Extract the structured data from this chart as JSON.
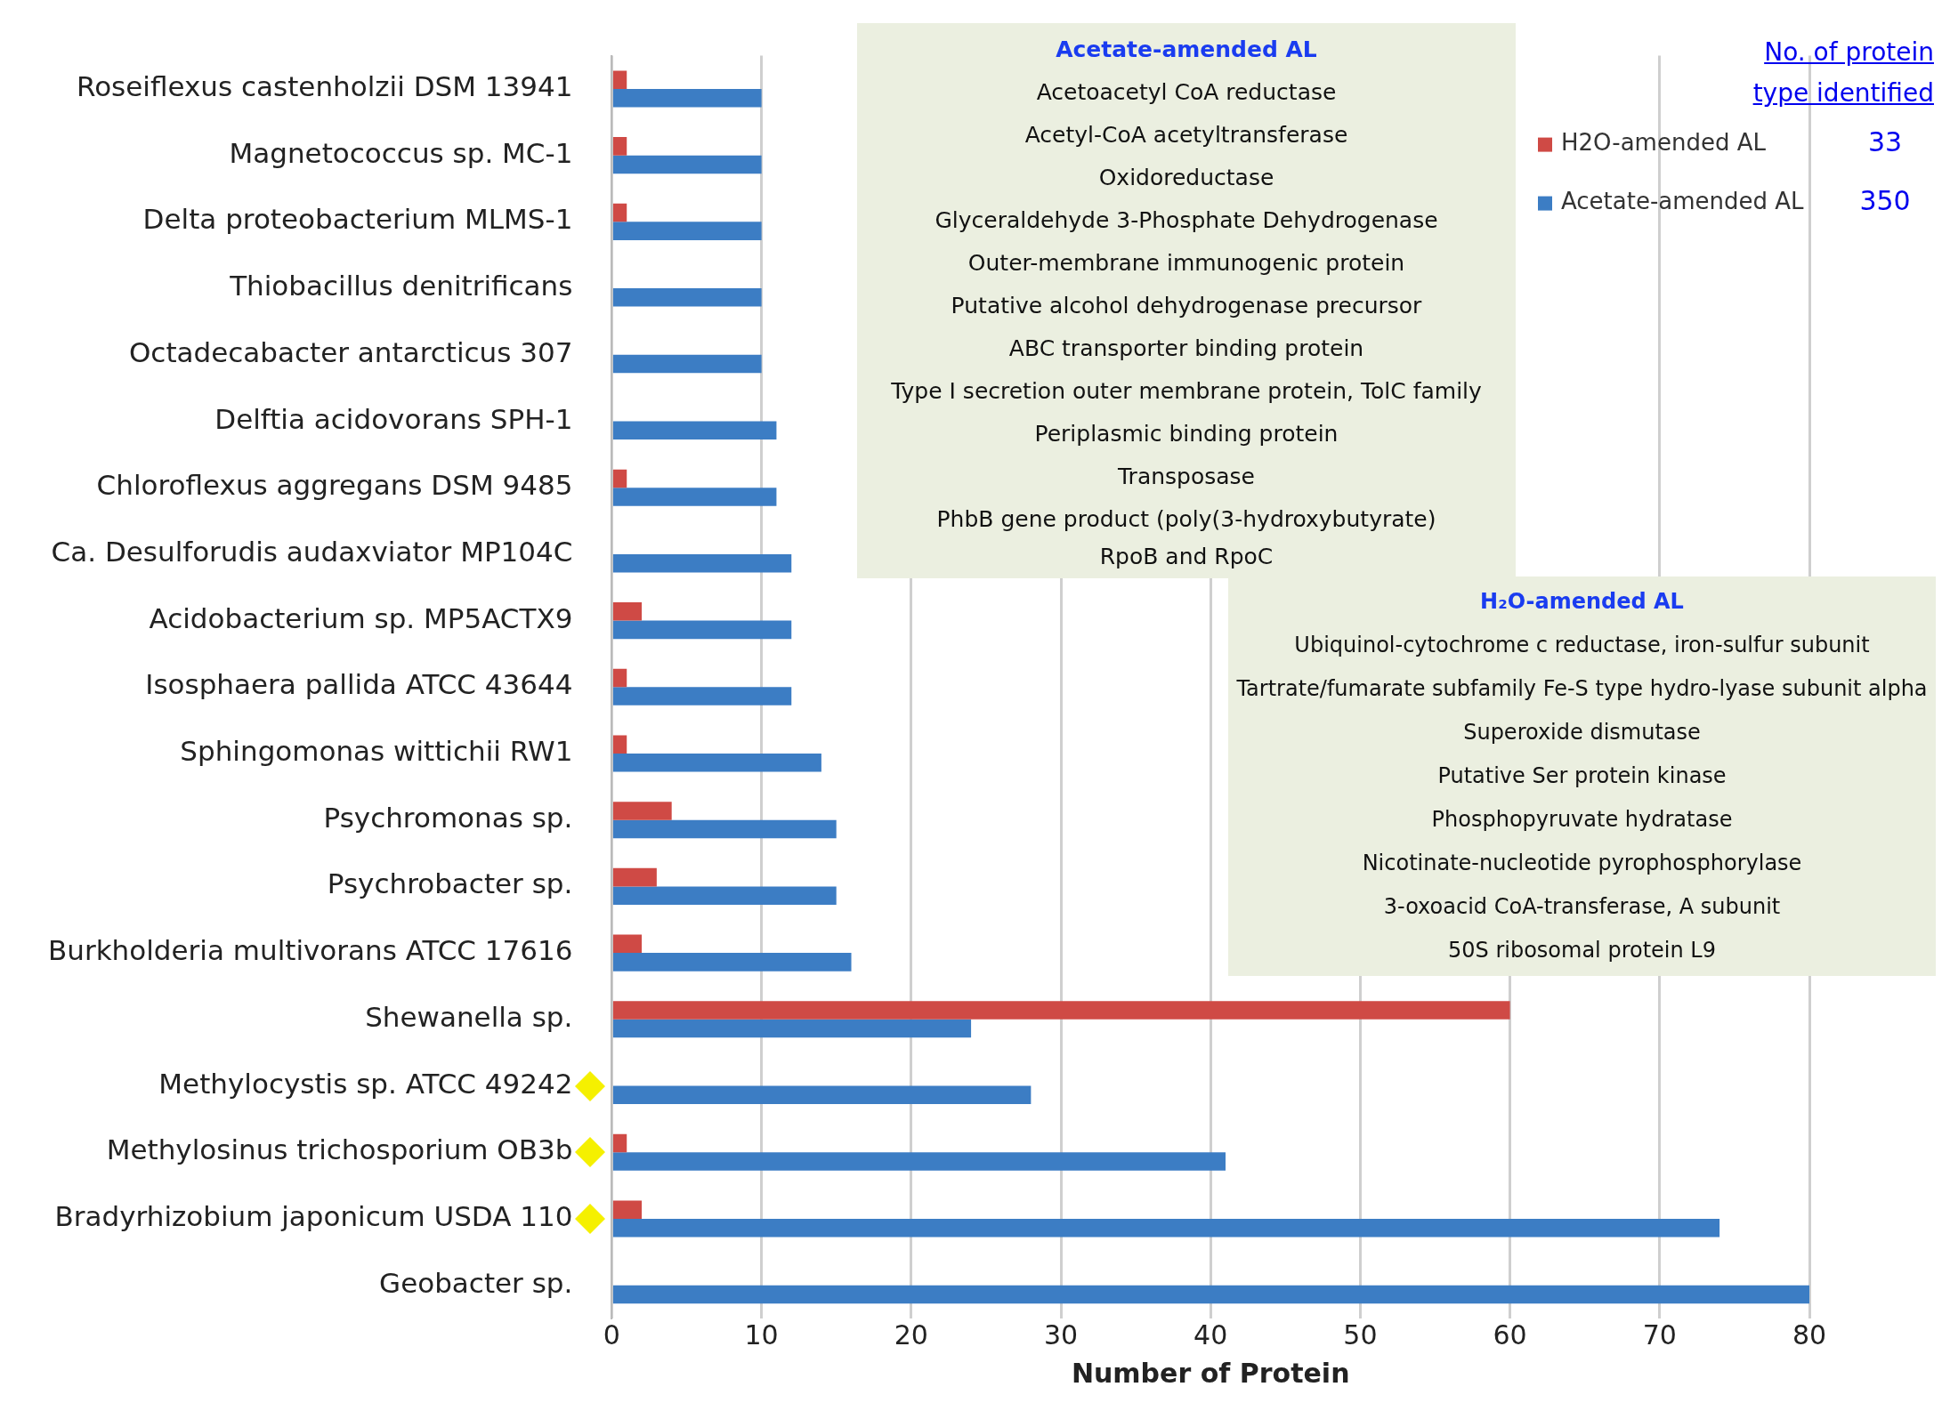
{
  "chart_data": {
    "type": "bar",
    "orientation": "horizontal",
    "xlabel": "Number of Protein",
    "categories": [
      "Roseiflexus castenholzii DSM 13941",
      "Magnetococcus sp. MC-1",
      "Delta proteobacterium MLMS-1",
      "Thiobacillus denitrificans",
      "Octadecabacter antarcticus 307",
      "Delftia acidovorans SPH-1",
      "Chloroflexus aggregans DSM 9485",
      "Ca. Desulforudis audaxviator MP104C",
      "Acidobacterium sp. MP5ACTX9",
      "Isosphaera pallida ATCC 43644",
      "Sphingomonas wittichii RW1",
      "Psychromonas sp.",
      "Psychrobacter sp.",
      "Burkholderia multivorans ATCC 17616",
      "Shewanella sp.",
      "Methylocystis sp. ATCC 49242",
      "Methylosinus trichosporium OB3b",
      "Bradyrhizobium japonicum USDA 110",
      "Geobacter sp."
    ],
    "series": [
      {
        "name": "H2O-amended AL",
        "color": "#cf4a45",
        "values": [
          1,
          1,
          1,
          0,
          0,
          0,
          1,
          0,
          2,
          1,
          1,
          4,
          3,
          2,
          60,
          0,
          1,
          2,
          0
        ]
      },
      {
        "name": "Acetate-amended AL",
        "color": "#3c7dc4",
        "values": [
          10,
          10,
          10,
          10,
          10,
          11,
          11,
          12,
          12,
          12,
          14,
          15,
          15,
          16,
          24,
          28,
          41,
          74,
          80
        ]
      }
    ],
    "xlim": [
      0,
      80
    ],
    "xticks": [
      0,
      10,
      20,
      30,
      40,
      50,
      60,
      70,
      80
    ],
    "grid": "x",
    "legend": "top right",
    "annotations": [
      "No. of protein type identified",
      "33",
      "350",
      "Acetate-amended AL",
      "Acetoacetyl CoA reductase",
      "Acetyl-CoA acetyltransferase",
      "Oxidoreductase",
      "Glyceraldehyde 3-Phosphate Dehydrogenase",
      "Outer-membrane immunogenic protein",
      "Putative alcohol dehydrogenase precursor",
      "ABC transporter binding protein",
      "Type I secretion outer membrane protein, TolC family",
      "Periplasmic binding protein",
      "Transposase",
      "PhbB gene product (poly(3-hydroxybutyrate)",
      "RpoB and RpoC",
      "H₂O-amended AL",
      "Ubiquinol-cytochrome c reductase, iron-sulfur subunit",
      "Tartrate/fumarate subfamily Fe-S type hydro-lyase subunit alpha",
      "Superoxide dismutase",
      "Putative Ser protein kinase",
      "Phosphopyruvate hydratase",
      "Nicotinate-nucleotide pyrophosphorylase",
      "3-oxoacid CoA-transferase, A subunit",
      "50S ribosomal protein L9"
    ]
  }
}
